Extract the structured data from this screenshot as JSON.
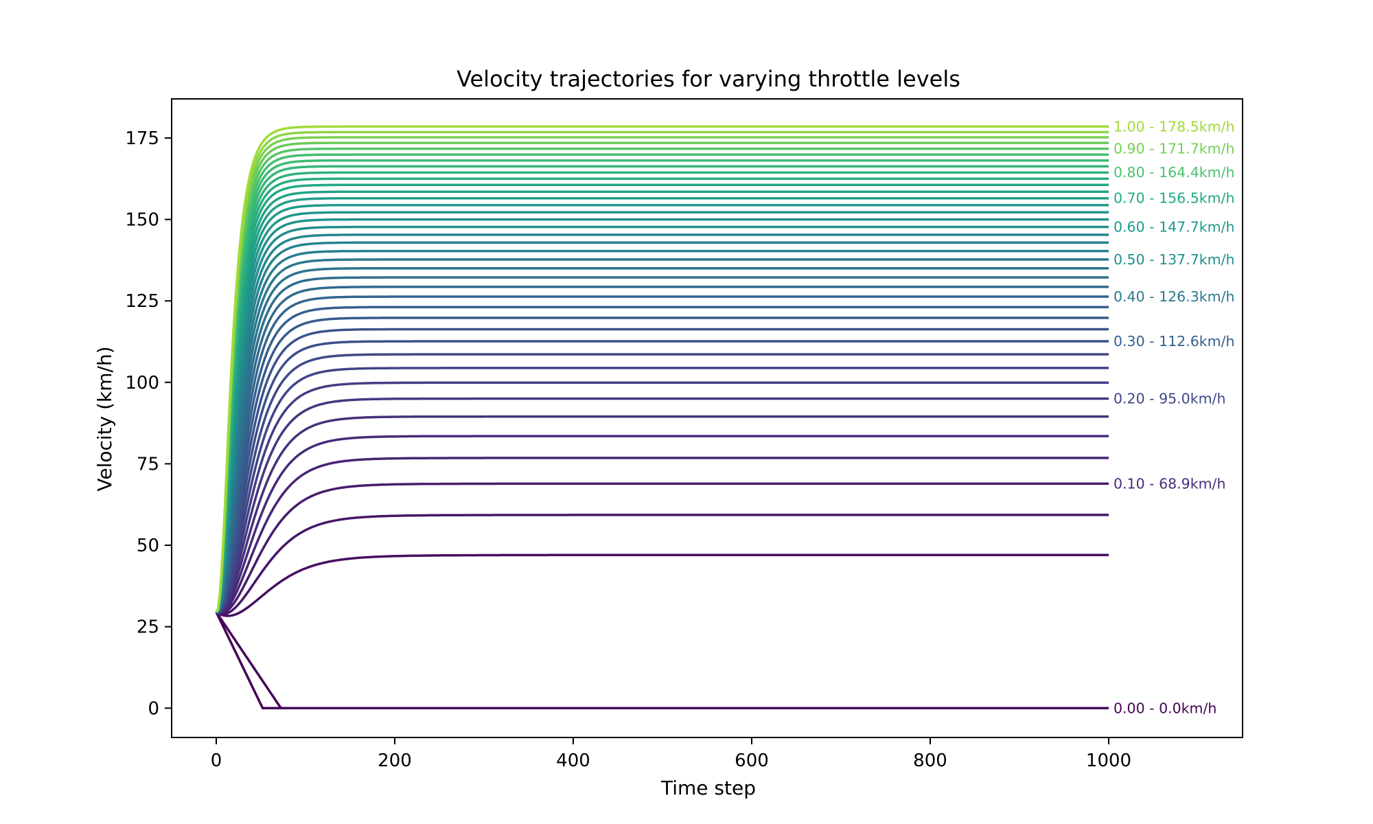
{
  "chart_data": {
    "type": "line",
    "title": "Velocity trajectories for varying throttle levels",
    "xlabel": "Time step",
    "ylabel": "Velocity (km/h)",
    "xlim": [
      -50,
      1150
    ],
    "ylim": [
      -9,
      187
    ],
    "xticks": [
      0,
      200,
      400,
      600,
      800,
      1000
    ],
    "yticks": [
      0,
      25,
      50,
      75,
      100,
      125,
      150,
      175
    ],
    "grid": false,
    "legend": "none",
    "initial_velocity": 29.5,
    "colormap": "viridis",
    "throttles": [
      0.0,
      0.025,
      0.05,
      0.075,
      0.1,
      0.125,
      0.15,
      0.175,
      0.2,
      0.225,
      0.25,
      0.275,
      0.3,
      0.325,
      0.35,
      0.375,
      0.4,
      0.425,
      0.45,
      0.475,
      0.5,
      0.525,
      0.55,
      0.575,
      0.6,
      0.625,
      0.65,
      0.675,
      0.7,
      0.725,
      0.75,
      0.775,
      0.8,
      0.825,
      0.85,
      0.875,
      0.9,
      0.925,
      0.95,
      0.975,
      1.0
    ],
    "final_velocities": [
      0.0,
      0.0,
      47.0,
      59.3,
      68.9,
      76.8,
      83.5,
      89.5,
      95.0,
      99.9,
      104.4,
      108.6,
      112.6,
      116.3,
      119.8,
      123.1,
      126.3,
      129.3,
      132.2,
      135.0,
      137.7,
      140.3,
      142.9,
      145.3,
      147.7,
      150.0,
      152.2,
      154.4,
      156.5,
      158.5,
      160.6,
      162.5,
      164.4,
      166.3,
      168.1,
      169.9,
      171.7,
      173.5,
      175.2,
      176.8,
      178.5
    ],
    "labels": [
      {
        "text": "1.00 - 178.5km/h",
        "value": 178.5,
        "color": "#a0da39"
      },
      {
        "text": "0.90 - 171.7km/h",
        "value": 171.7,
        "color": "#75d054"
      },
      {
        "text": "0.80 - 164.4km/h",
        "value": 164.4,
        "color": "#4ac16d"
      },
      {
        "text": "0.70 - 156.5km/h",
        "value": 156.5,
        "color": "#22a884"
      },
      {
        "text": "0.60 - 147.7km/h",
        "value": 147.7,
        "color": "#1f988b"
      },
      {
        "text": "0.50 - 137.7km/h",
        "value": 137.7,
        "color": "#21918c"
      },
      {
        "text": "0.40 - 126.3km/h",
        "value": 126.3,
        "color": "#2a788e"
      },
      {
        "text": "0.30 - 112.6km/h",
        "value": 112.6,
        "color": "#355f8d"
      },
      {
        "text": "0.20 - 95.0km/h",
        "value": 95.0,
        "color": "#404688"
      },
      {
        "text": "0.10 - 68.9km/h",
        "value": 68.9,
        "color": "#472d7b"
      },
      {
        "text": "0.00 - 0.0km/h",
        "value": 0.0,
        "color": "#440154"
      }
    ]
  }
}
